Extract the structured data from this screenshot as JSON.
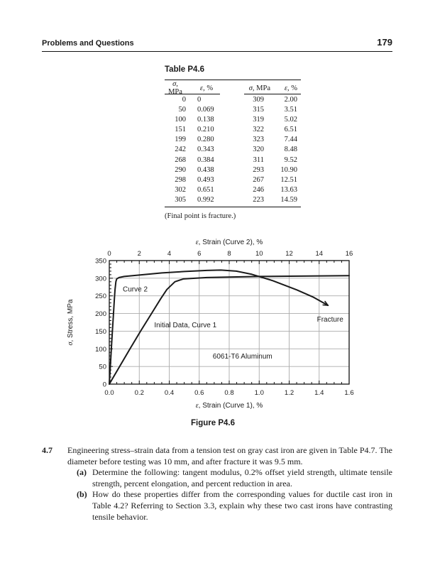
{
  "page_header": {
    "title": "Problems and Questions",
    "page_number": "179"
  },
  "table": {
    "title": "Table P4.6",
    "col_headers": [
      {
        "sym": "σ",
        "rest": ", MPa"
      },
      {
        "sym": "ε",
        "rest": ", %"
      },
      {
        "sym": "σ",
        "rest": ", MPa"
      },
      {
        "sym": "ε",
        "rest": ", %"
      }
    ],
    "rows": [
      [
        "0",
        "0",
        "309",
        "2.00"
      ],
      [
        "50",
        "0.069",
        "315",
        "3.51"
      ],
      [
        "100",
        "0.138",
        "319",
        "5.02"
      ],
      [
        "151",
        "0.210",
        "322",
        "6.51"
      ],
      [
        "199",
        "0.280",
        "323",
        "7.44"
      ],
      [
        "242",
        "0.343",
        "320",
        "8.48"
      ],
      [
        "268",
        "0.384",
        "311",
        "9.52"
      ],
      [
        "290",
        "0.438",
        "293",
        "10.90"
      ],
      [
        "298",
        "0.493",
        "267",
        "12.51"
      ],
      [
        "302",
        "0.651",
        "246",
        "13.63"
      ],
      [
        "305",
        "0.992",
        "223",
        "14.59"
      ]
    ],
    "footnote": "(Final point is fracture.)"
  },
  "figure": {
    "caption": "Figure P4.6"
  },
  "problem": {
    "number": "4.7",
    "intro": "Engineering stress–strain data from a tension test on gray cast iron are given in Table P4.7. The diameter before testing was 10 mm, and after fracture it was 9.5 mm.",
    "parts": [
      {
        "label": "(a)",
        "text": "Determine the following: tangent modulus, 0.2% offset yield strength, ultimate tensile strength, percent elongation, and percent reduction in area."
      },
      {
        "label": "(b)",
        "text": "How do these properties differ from the corresponding values for ductile cast iron in Table 4.2? Referring to Section 3.3, explain why these two cast irons have contrasting tensile behavior."
      }
    ]
  },
  "chart_data": {
    "type": "line",
    "title": "",
    "grid": true,
    "colors": {
      "curve": "#1a1a1a",
      "grid": "#ababab",
      "axis": "#111111"
    },
    "top_axis": {
      "label": {
        "sym": "ε",
        "rest": ", Strain (Curve 2), %"
      },
      "lim": [
        0,
        16
      ],
      "ticks": [
        "0",
        "2",
        "4",
        "6",
        "8",
        "10",
        "12",
        "14",
        "16"
      ],
      "minor_subdiv": 4
    },
    "bottom_axis": {
      "label": {
        "sym": "ε",
        "rest": ", Strain (Curve 1), %"
      },
      "lim": [
        0,
        1.6
      ],
      "ticks": [
        "0.0",
        "0.2",
        "0.4",
        "0.6",
        "0.8",
        "1.0",
        "1.2",
        "1.4",
        "1.6"
      ],
      "minor_subdiv": 4
    },
    "y_axis": {
      "label": {
        "sym": "σ",
        "rest": ", Stress, MPa"
      },
      "lim": [
        0,
        350
      ],
      "ticks": [
        "0",
        "50",
        "100",
        "150",
        "200",
        "250",
        "300",
        "350"
      ],
      "minor_subdiv": 5
    },
    "series": [
      {
        "name": "Curve 2",
        "axis": "top",
        "fracture_marker": true,
        "points": [
          [
            0,
            0
          ],
          [
            0.069,
            50
          ],
          [
            0.138,
            100
          ],
          [
            0.21,
            151
          ],
          [
            0.28,
            199
          ],
          [
            0.343,
            242
          ],
          [
            0.384,
            268
          ],
          [
            0.438,
            290
          ],
          [
            0.493,
            298
          ],
          [
            0.651,
            302
          ],
          [
            0.992,
            305
          ],
          [
            2.0,
            309
          ],
          [
            3.51,
            315
          ],
          [
            5.02,
            319
          ],
          [
            6.51,
            322
          ],
          [
            7.44,
            323
          ],
          [
            8.48,
            320
          ],
          [
            9.52,
            311
          ],
          [
            10.9,
            293
          ],
          [
            12.51,
            267
          ],
          [
            13.63,
            246
          ],
          [
            14.59,
            223
          ]
        ]
      },
      {
        "name": "Initial Data, Curve 1",
        "axis": "bottom",
        "fracture_marker": false,
        "points": [
          [
            0,
            0
          ],
          [
            0.069,
            50
          ],
          [
            0.138,
            100
          ],
          [
            0.21,
            151
          ],
          [
            0.28,
            199
          ],
          [
            0.343,
            242
          ],
          [
            0.384,
            268
          ],
          [
            0.438,
            290
          ],
          [
            0.493,
            298
          ],
          [
            0.651,
            302
          ],
          [
            0.992,
            305
          ],
          [
            1.6,
            307.4
          ]
        ]
      }
    ],
    "annotations": [
      {
        "text": "Curve 2",
        "axis": "top",
        "x": 0.9,
        "y": 263
      },
      {
        "text": "Initial Data, Curve 1",
        "axis": "bottom",
        "x": 0.3,
        "y": 161
      },
      {
        "text": "6061-T6 Aluminum",
        "axis": "bottom",
        "x": 0.69,
        "y": 72
      },
      {
        "text": "Fracture",
        "axis": "top",
        "x": 13.85,
        "y": 177
      }
    ]
  }
}
